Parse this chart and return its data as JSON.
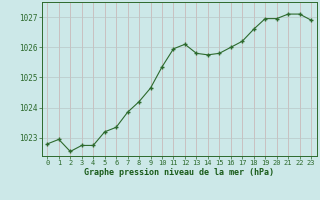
{
  "x": [
    0,
    1,
    2,
    3,
    4,
    5,
    6,
    7,
    8,
    9,
    10,
    11,
    12,
    13,
    14,
    15,
    16,
    17,
    18,
    19,
    20,
    21,
    22,
    23
  ],
  "y": [
    1022.8,
    1022.95,
    1022.55,
    1022.75,
    1022.75,
    1023.2,
    1023.35,
    1023.85,
    1024.2,
    1024.65,
    1025.35,
    1025.95,
    1026.1,
    1025.8,
    1025.75,
    1025.8,
    1026.0,
    1026.2,
    1026.6,
    1026.95,
    1026.95,
    1027.1,
    1027.1,
    1026.9
  ],
  "line_color": "#2d6a2d",
  "marker_color": "#2d6a2d",
  "bg_color": "#cce8e8",
  "grid_color_v": "#c8b0b0",
  "grid_color_h": "#b8c8c8",
  "xlabel": "Graphe pression niveau de la mer (hPa)",
  "xlabel_color": "#1a5c1a",
  "ylabel_ticks": [
    1023,
    1024,
    1025,
    1026,
    1027
  ],
  "ylim": [
    1022.4,
    1027.5
  ],
  "xlim": [
    -0.5,
    23.5
  ],
  "xtick_labels": [
    "0",
    "1",
    "2",
    "3",
    "4",
    "5",
    "6",
    "7",
    "8",
    "9",
    "10",
    "11",
    "12",
    "13",
    "14",
    "15",
    "16",
    "17",
    "18",
    "19",
    "20",
    "21",
    "22",
    "23"
  ],
  "axis_color": "#2d6a2d",
  "tick_color": "#2d6a2d"
}
